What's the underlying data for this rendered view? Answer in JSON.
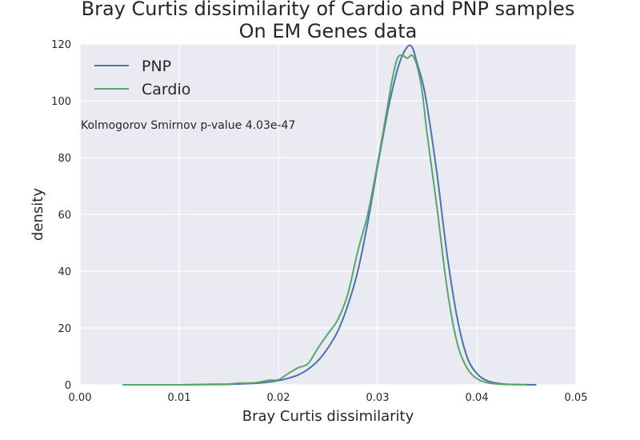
{
  "chart_data": {
    "type": "line",
    "title": "Bray Curtis dissimilarity of Cardio and PNP samples",
    "subtitle": "On EM Genes data",
    "xlabel": "Bray Curtis dissimilarity",
    "ylabel": "density",
    "xlim": [
      0.0,
      0.05
    ],
    "ylim": [
      0,
      120
    ],
    "xticks": [
      "0.00",
      "0.01",
      "0.02",
      "0.03",
      "0.04",
      "0.05"
    ],
    "yticks": [
      "0",
      "20",
      "40",
      "60",
      "80",
      "100",
      "120"
    ],
    "grid": true,
    "legend_position": "top-left",
    "annotation": "Kolmogorov Smirnov p-value 4.03e-47",
    "background_color": "#eaeaf2",
    "series": [
      {
        "name": "PNP",
        "color": "#4c72b0",
        "x": [
          0.0043,
          0.01,
          0.014,
          0.016,
          0.018,
          0.019,
          0.02,
          0.021,
          0.022,
          0.023,
          0.024,
          0.025,
          0.026,
          0.027,
          0.028,
          0.029,
          0.03,
          0.031,
          0.0315,
          0.032,
          0.0325,
          0.033,
          0.0333,
          0.0336,
          0.034,
          0.0345,
          0.035,
          0.036,
          0.037,
          0.038,
          0.039,
          0.04,
          0.041,
          0.042,
          0.043,
          0.044,
          0.046
        ],
        "y": [
          0,
          0,
          0.1,
          0.3,
          0.6,
          1.0,
          1.5,
          2.3,
          3.5,
          5.5,
          8.5,
          13,
          19,
          28,
          40,
          57,
          77,
          96,
          104,
          111,
          116,
          119,
          119.5,
          118,
          113,
          107,
          98,
          74,
          46,
          24,
          10,
          4,
          1.5,
          0.6,
          0.2,
          0.1,
          0
        ]
      },
      {
        "name": "Cardio",
        "color": "#55a868",
        "x": [
          0.0043,
          0.01,
          0.013,
          0.015,
          0.016,
          0.017,
          0.018,
          0.019,
          0.02,
          0.021,
          0.022,
          0.023,
          0.024,
          0.025,
          0.026,
          0.027,
          0.028,
          0.029,
          0.03,
          0.031,
          0.0315,
          0.032,
          0.0325,
          0.033,
          0.0335,
          0.034,
          0.0345,
          0.035,
          0.036,
          0.037,
          0.038,
          0.039,
          0.04,
          0.041,
          0.042,
          0.043,
          0.045
        ],
        "y": [
          0,
          0,
          0.2,
          0.3,
          0.6,
          0.6,
          0.9,
          1.6,
          1.8,
          4,
          6,
          7.5,
          13,
          18,
          23,
          32,
          47,
          60,
          78,
          98,
          108,
          115,
          116,
          115,
          116,
          112,
          103,
          88,
          62,
          34,
          15,
          6,
          2.2,
          0.8,
          0.3,
          0.1,
          0
        ]
      }
    ]
  }
}
